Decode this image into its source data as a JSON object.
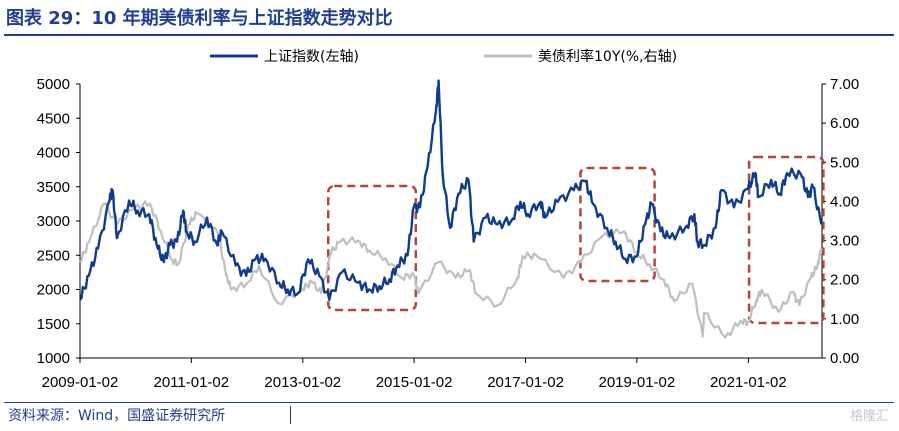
{
  "title": "图表 29：10 年期美债利率与上证指数走势对比",
  "source": "资料来源：Wind，国盛证券研究所",
  "watermark": "格隆汇",
  "colors": {
    "title": "#1f3f8f",
    "sse": "#0f3c8c",
    "ust": "#bfbfbf",
    "box": "#b5443a"
  },
  "chart_data": {
    "type": "line",
    "title": "",
    "xlabel": "",
    "ylabel_left": "",
    "ylabel_right": "",
    "x_tick_labels": [
      "2009-01-02",
      "2011-01-02",
      "2013-01-02",
      "2015-01-02",
      "2017-01-02",
      "2019-01-02",
      "2021-01-02"
    ],
    "y_left_ticks": [
      1000,
      1500,
      2000,
      2500,
      3000,
      3500,
      4000,
      4500,
      5000
    ],
    "y_right_ticks": [
      "0.00",
      "1.00",
      "2.00",
      "3.00",
      "4.00",
      "5.00",
      "6.00",
      "7.00"
    ],
    "ylim_left": [
      1000,
      5000
    ],
    "ylim_right": [
      0,
      7
    ],
    "xlim": [
      "2009-01-02",
      "2022-04-30"
    ],
    "legend_position": "top-center",
    "series": [
      {
        "name": "上证指数(左轴)",
        "axis": "left",
        "color": "#0f3c8c",
        "points": [
          [
            "2009-01-02",
            1850
          ],
          [
            "2009-03-01",
            2200
          ],
          [
            "2009-05-01",
            2600
          ],
          [
            "2009-07-15",
            3300
          ],
          [
            "2009-08-04",
            3450
          ],
          [
            "2009-09-01",
            2750
          ],
          [
            "2009-11-20",
            3300
          ],
          [
            "2010-01-15",
            3150
          ],
          [
            "2010-04-01",
            3100
          ],
          [
            "2010-05-20",
            2650
          ],
          [
            "2010-07-05",
            2400
          ],
          [
            "2010-08-15",
            2650
          ],
          [
            "2010-10-01",
            2700
          ],
          [
            "2010-11-10",
            3150
          ],
          [
            "2010-12-01",
            2850
          ],
          [
            "2011-01-25",
            2700
          ],
          [
            "2011-04-15",
            3050
          ],
          [
            "2011-06-20",
            2650
          ],
          [
            "2011-07-20",
            2850
          ],
          [
            "2011-10-20",
            2350
          ],
          [
            "2011-12-28",
            2200
          ],
          [
            "2012-02-28",
            2450
          ],
          [
            "2012-05-01",
            2450
          ],
          [
            "2012-07-31",
            2100
          ],
          [
            "2012-09-25",
            2000
          ],
          [
            "2012-12-04",
            1950
          ],
          [
            "2013-02-06",
            2440
          ],
          [
            "2013-04-20",
            2200
          ],
          [
            "2013-06-25",
            1850
          ],
          [
            "2013-09-15",
            2250
          ],
          [
            "2013-12-31",
            2100
          ],
          [
            "2014-03-12",
            2000
          ],
          [
            "2014-05-20",
            2050
          ],
          [
            "2014-07-25",
            2150
          ],
          [
            "2014-09-15",
            2350
          ],
          [
            "2014-11-20",
            2500
          ],
          [
            "2014-12-31",
            3200
          ],
          [
            "2015-02-10",
            3200
          ],
          [
            "2015-04-01",
            3800
          ],
          [
            "2015-05-25",
            4600
          ],
          [
            "2015-06-12",
            5050
          ],
          [
            "2015-07-08",
            3700
          ],
          [
            "2015-08-26",
            2900
          ],
          [
            "2015-10-20",
            3400
          ],
          [
            "2015-12-25",
            3600
          ],
          [
            "2016-01-28",
            2700
          ],
          [
            "2016-04-15",
            3050
          ],
          [
            "2016-07-01",
            2950
          ],
          [
            "2016-09-30",
            3000
          ],
          [
            "2016-11-29",
            3280
          ],
          [
            "2017-01-16",
            3100
          ],
          [
            "2017-04-10",
            3280
          ],
          [
            "2017-05-10",
            3050
          ],
          [
            "2017-08-01",
            3280
          ],
          [
            "2017-11-14",
            3450
          ],
          [
            "2018-01-29",
            3580
          ],
          [
            "2018-03-21",
            3250
          ],
          [
            "2018-06-19",
            2900
          ],
          [
            "2018-08-15",
            2700
          ],
          [
            "2018-10-18",
            2450
          ],
          [
            "2018-12-31",
            2480
          ],
          [
            "2019-02-25",
            2950
          ],
          [
            "2019-04-08",
            3250
          ],
          [
            "2019-06-06",
            2850
          ],
          [
            "2019-08-06",
            2750
          ],
          [
            "2019-11-15",
            2900
          ],
          [
            "2020-01-14",
            3100
          ],
          [
            "2020-02-03",
            2700
          ],
          [
            "2020-03-19",
            2650
          ],
          [
            "2020-06-01",
            2900
          ],
          [
            "2020-07-09",
            3450
          ],
          [
            "2020-09-30",
            3200
          ],
          [
            "2020-12-31",
            3470
          ],
          [
            "2021-02-18",
            3700
          ],
          [
            "2021-03-09",
            3350
          ],
          [
            "2021-06-01",
            3600
          ],
          [
            "2021-07-28",
            3400
          ],
          [
            "2021-09-13",
            3700
          ],
          [
            "2021-12-13",
            3680
          ],
          [
            "2022-01-28",
            3350
          ],
          [
            "2022-03-01",
            3500
          ],
          [
            "2022-04-26",
            2950
          ]
        ]
      },
      {
        "name": "美债利率10Y(%,右轴)",
        "axis": "right",
        "color": "#bfbfbf",
        "points": [
          [
            "2009-01-02",
            2.45
          ],
          [
            "2009-03-01",
            2.95
          ],
          [
            "2009-06-10",
            3.95
          ],
          [
            "2009-09-01",
            3.4
          ],
          [
            "2009-12-31",
            3.85
          ],
          [
            "2010-04-05",
            3.95
          ],
          [
            "2010-06-15",
            3.25
          ],
          [
            "2010-08-31",
            2.5
          ],
          [
            "2010-10-10",
            2.4
          ],
          [
            "2010-12-15",
            3.4
          ],
          [
            "2011-02-08",
            3.7
          ],
          [
            "2011-06-30",
            3.15
          ],
          [
            "2011-08-18",
            2.1
          ],
          [
            "2011-09-22",
            1.75
          ],
          [
            "2011-12-30",
            1.9
          ],
          [
            "2012-03-20",
            2.35
          ],
          [
            "2012-07-24",
            1.4
          ],
          [
            "2012-12-31",
            1.75
          ],
          [
            "2013-03-01",
            1.95
          ],
          [
            "2013-05-02",
            1.65
          ],
          [
            "2013-07-08",
            2.7
          ],
          [
            "2013-09-05",
            2.98
          ],
          [
            "2013-12-31",
            3.0
          ],
          [
            "2014-03-15",
            2.75
          ],
          [
            "2014-06-30",
            2.55
          ],
          [
            "2014-10-15",
            2.05
          ],
          [
            "2014-12-31",
            2.15
          ],
          [
            "2015-01-30",
            1.65
          ],
          [
            "2015-06-10",
            2.45
          ],
          [
            "2015-10-01",
            2.05
          ],
          [
            "2015-12-31",
            2.25
          ],
          [
            "2016-02-11",
            1.65
          ],
          [
            "2016-07-05",
            1.35
          ],
          [
            "2016-11-10",
            2.05
          ],
          [
            "2016-12-15",
            2.6
          ],
          [
            "2017-03-13",
            2.62
          ],
          [
            "2017-09-07",
            2.05
          ],
          [
            "2017-12-31",
            2.45
          ],
          [
            "2018-05-17",
            3.1
          ],
          [
            "2018-10-08",
            3.24
          ],
          [
            "2018-12-31",
            2.7
          ],
          [
            "2019-03-25",
            2.4
          ],
          [
            "2019-06-28",
            2.0
          ],
          [
            "2019-09-03",
            1.45
          ],
          [
            "2019-12-31",
            1.9
          ],
          [
            "2020-03-09",
            0.55
          ],
          [
            "2020-03-18",
            1.15
          ],
          [
            "2020-08-04",
            0.52
          ],
          [
            "2020-11-10",
            0.95
          ],
          [
            "2020-12-31",
            0.92
          ],
          [
            "2021-02-25",
            1.5
          ],
          [
            "2021-03-31",
            1.74
          ],
          [
            "2021-07-19",
            1.18
          ],
          [
            "2021-10-20",
            1.68
          ],
          [
            "2021-12-03",
            1.35
          ],
          [
            "2022-02-15",
            2.05
          ],
          [
            "2022-03-31",
            2.35
          ],
          [
            "2022-04-26",
            2.8
          ]
        ]
      }
    ],
    "annotations": [
      {
        "type": "dashed-box",
        "x_range": [
          "2013-07-01",
          "2014-12-31"
        ]
      },
      {
        "type": "dashed-box",
        "x_range": [
          "2018-01-10",
          "2019-04-15"
        ]
      },
      {
        "type": "dashed-box",
        "x_range": [
          "2021-01-20",
          "2022-04-26"
        ]
      }
    ]
  }
}
